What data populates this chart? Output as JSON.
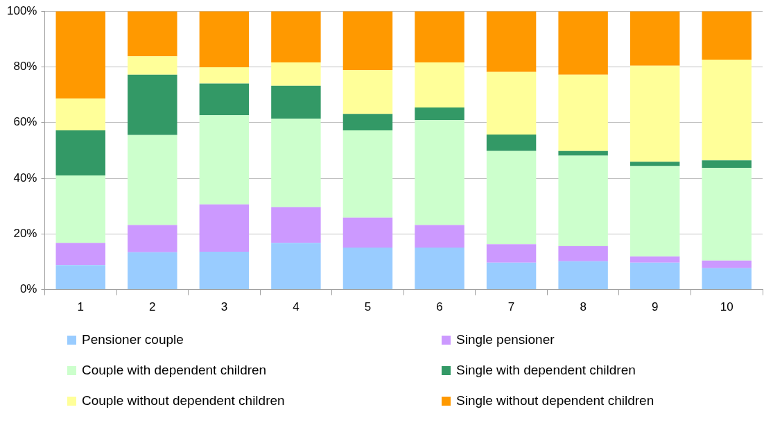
{
  "chart_data": {
    "type": "bar",
    "stacked": true,
    "categories": [
      "1",
      "2",
      "3",
      "4",
      "5",
      "6",
      "7",
      "8",
      "9",
      "10"
    ],
    "series": [
      {
        "name": "Pensioner couple",
        "color": "#99ccff",
        "values": [
          8.8,
          13.4,
          13.6,
          16.8,
          15.1,
          15.1,
          9.7,
          10.2,
          9.7,
          7.7
        ]
      },
      {
        "name": "Single pensioner",
        "color": "#cc99ff",
        "values": [
          8.0,
          9.8,
          17.0,
          12.8,
          10.8,
          8.1,
          6.6,
          5.4,
          2.2,
          2.7
        ]
      },
      {
        "name": "Couple with dependent children",
        "color": "#ccffcc",
        "values": [
          24.2,
          32.3,
          32.0,
          31.8,
          31.3,
          37.7,
          33.5,
          32.5,
          32.5,
          33.3
        ]
      },
      {
        "name": "Single with dependent children",
        "color": "#339966",
        "values": [
          16.2,
          21.7,
          11.4,
          11.8,
          5.9,
          4.5,
          5.9,
          1.7,
          1.5,
          2.7
        ]
      },
      {
        "name": "Couple without dependent children",
        "color": "#ffff99",
        "values": [
          11.4,
          6.6,
          5.9,
          8.4,
          15.8,
          16.2,
          22.5,
          27.4,
          34.5,
          36.2
        ]
      },
      {
        "name": "Single without dependent children",
        "color": "#ff9900",
        "values": [
          31.4,
          16.2,
          20.1,
          18.4,
          21.1,
          18.4,
          21.8,
          22.8,
          19.6,
          17.4
        ]
      }
    ],
    "ylim": [
      0,
      100
    ],
    "yticks": [
      {
        "value": 0,
        "label": "0%"
      },
      {
        "value": 20,
        "label": "20%"
      },
      {
        "value": 40,
        "label": "40%"
      },
      {
        "value": 60,
        "label": "60%"
      },
      {
        "value": 80,
        "label": "80%"
      },
      {
        "value": 100,
        "label": "100%"
      }
    ],
    "grid": "y",
    "legend": "bottom"
  }
}
